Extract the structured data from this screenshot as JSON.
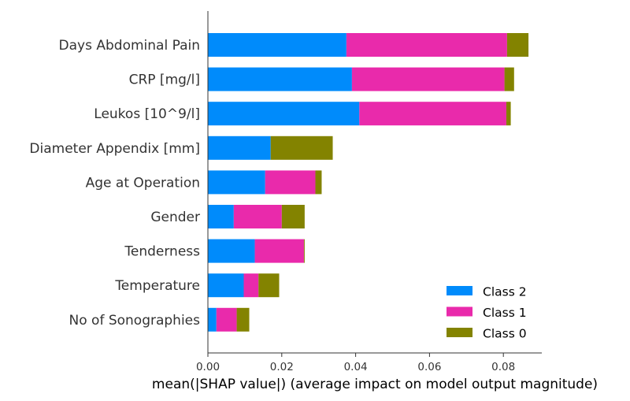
{
  "chart_data": {
    "type": "bar",
    "orientation": "horizontal",
    "stacked": true,
    "categories": [
      "Days Abdominal Pain",
      "CRP [mg/l]",
      "Leukos [10^9/l]",
      "Diameter Appendix [mm]",
      "Age at Operation",
      "Gender",
      "Tenderness",
      "Temperature",
      "No of Sonographies"
    ],
    "series": [
      {
        "name": "Class 2",
        "color": "#008bfb",
        "values": [
          0.0375,
          0.039,
          0.041,
          0.017,
          0.0155,
          0.007,
          0.0127,
          0.0097,
          0.0023
        ]
      },
      {
        "name": "Class 1",
        "color": "#e92aab",
        "values": [
          0.0435,
          0.0413,
          0.0398,
          0.0,
          0.0136,
          0.013,
          0.0133,
          0.004,
          0.0055
        ]
      },
      {
        "name": "Class 0",
        "color": "#838300",
        "values": [
          0.0058,
          0.0026,
          0.0012,
          0.0168,
          0.0017,
          0.0062,
          0.0002,
          0.0056,
          0.0034
        ]
      }
    ],
    "xlabel": "mean(|SHAP value|) (average impact on model output magnitude)",
    "xlim": [
      0.0,
      0.0908
    ],
    "xticks": [
      "0.00",
      "0.02",
      "0.04",
      "0.06",
      "0.08"
    ],
    "legend": {
      "position": "lower-right",
      "order": [
        "Class 2",
        "Class 1",
        "Class 0"
      ]
    },
    "grid": false
  }
}
